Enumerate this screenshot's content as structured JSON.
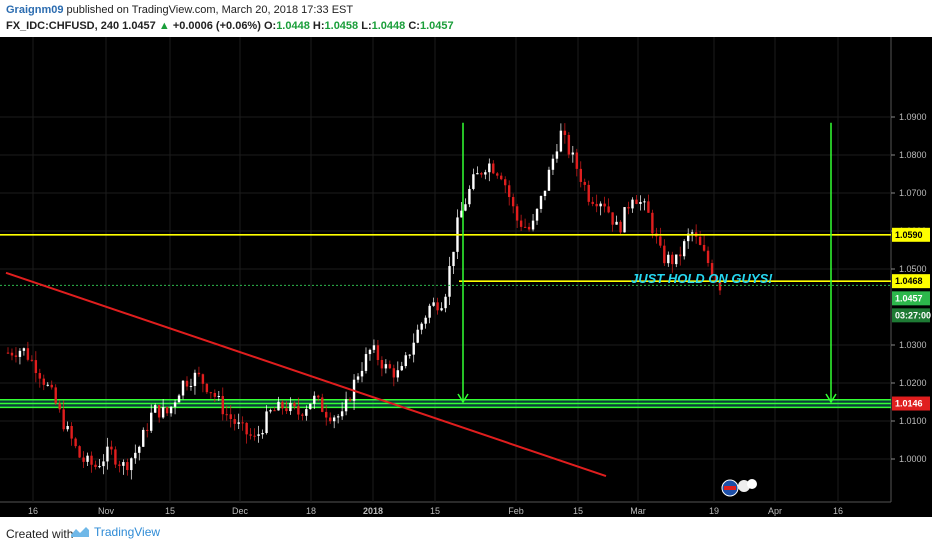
{
  "header": {
    "author": "Graignm09",
    "published": "published on TradingView.com, March 20, 2018 17:33 EST",
    "symbol": "FX_IDC:CHFUSD, 240",
    "last": "1.0457",
    "arrow": "▲",
    "change": "+0.0006 (+0.06%)",
    "o_label": "O:",
    "o_value": "1.0448",
    "h_label": "H:",
    "h_value": "1.0458",
    "l_label": "L:",
    "l_value": "1.0448",
    "c_label": "C:",
    "c_value": "1.0457"
  },
  "footer": {
    "created": "Created with",
    "brand": "TradingView"
  },
  "colors": {
    "background": "#000000",
    "up": "#ffffff",
    "down": "#e01e1e",
    "yellow": "#ffff00",
    "green": "#33ff33",
    "teal": "#20b2aa",
    "trend": "#e01e1e",
    "cyan": "#26d7f0"
  },
  "chart_data": {
    "type": "candlestick",
    "symbol": "FX_IDC:CHFUSD",
    "interval": "240",
    "y_ticks": [
      1.0,
      1.01,
      1.02,
      1.03,
      1.05,
      1.06,
      1.07,
      1.08,
      1.09
    ],
    "y_tick_labels": [
      "1.0000",
      "1.0100",
      "1.0200",
      "1.0300",
      "1.0500",
      "1.0600",
      "1.0700",
      "1.0800",
      "1.0900"
    ],
    "x_tick_labels": [
      "16",
      "Nov",
      "15",
      "Dec",
      "18",
      "2018",
      "15",
      "Feb",
      "15",
      "Mar",
      "19",
      "Apr",
      "16"
    ],
    "price_path": [
      [
        0,
        1.028
      ],
      [
        3,
        1.029
      ],
      [
        6,
        1.024
      ],
      [
        9,
        1.017
      ],
      [
        12,
        1.008
      ],
      [
        15,
        1.0
      ],
      [
        18,
        0.998
      ],
      [
        21,
        1.002
      ],
      [
        24,
        0.998
      ],
      [
        27,
        1.003
      ],
      [
        30,
        1.013
      ],
      [
        33,
        1.012
      ],
      [
        36,
        1.02
      ],
      [
        39,
        1.022
      ],
      [
        42,
        1.018
      ],
      [
        45,
        1.012
      ],
      [
        48,
        1.008
      ],
      [
        51,
        1.005
      ],
      [
        54,
        1.012
      ],
      [
        57,
        1.014
      ],
      [
        60,
        1.012
      ],
      [
        63,
        1.016
      ],
      [
        66,
        1.012
      ],
      [
        69,
        1.011
      ],
      [
        72,
        1.022
      ],
      [
        75,
        1.029
      ],
      [
        78,
        1.024
      ],
      [
        81,
        1.022
      ],
      [
        84,
        1.032
      ],
      [
        87,
        1.04
      ],
      [
        90,
        1.042
      ],
      [
        93,
        1.063
      ],
      [
        96,
        1.073
      ],
      [
        99,
        1.078
      ],
      [
        102,
        1.075
      ],
      [
        105,
        1.063
      ],
      [
        108,
        1.06
      ],
      [
        111,
        1.072
      ],
      [
        114,
        1.086
      ],
      [
        117,
        1.078
      ],
      [
        120,
        1.069
      ],
      [
        123,
        1.068
      ],
      [
        126,
        1.06
      ],
      [
        129,
        1.07
      ],
      [
        132,
        1.065
      ],
      [
        135,
        1.053
      ],
      [
        138,
        1.052
      ],
      [
        141,
        1.06
      ],
      [
        144,
        1.053
      ],
      [
        147,
        1.0457
      ]
    ],
    "horizontal_levels": [
      {
        "price": 1.059,
        "label": "1.0590",
        "color": "yellow"
      },
      {
        "price": 1.0468,
        "label": "1.0468",
        "color": "yellow"
      },
      {
        "price": 1.0146,
        "label": "1.0146",
        "color": "red"
      }
    ],
    "support_zone": [
      1.0136,
      1.0156
    ],
    "current_price": "1.0457",
    "countdown": "03:27:00",
    "trendline": {
      "from": [
        0,
        1.049
      ],
      "to": [
        170,
        0.9955
      ]
    },
    "arrows": [
      {
        "x": 117,
        "from": 1.0885,
        "to": 1.015
      },
      {
        "x": 205,
        "from": 1.0885,
        "to": 1.015
      }
    ],
    "annotation": "JUST HOLD ON GUYS!"
  }
}
